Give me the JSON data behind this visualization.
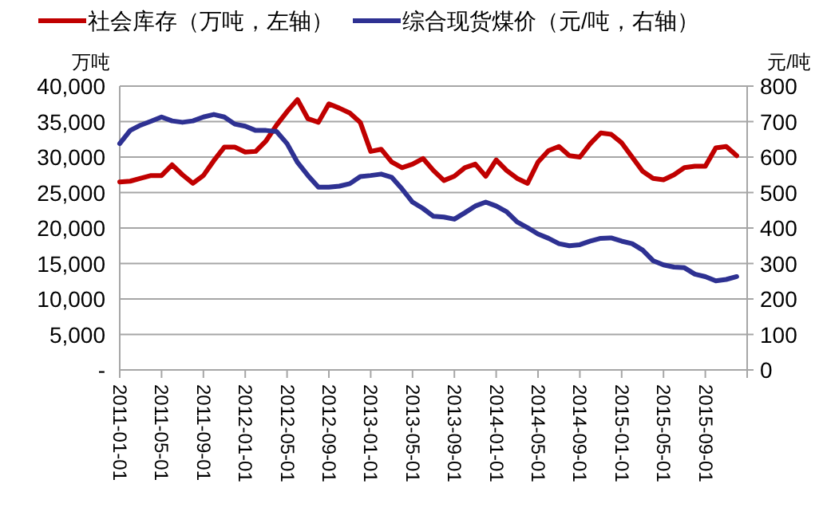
{
  "chart_data": {
    "type": "line",
    "legend": "top",
    "grid": "y",
    "ylabel": "万吨",
    "y2label": "元/吨",
    "x": [
      "2011-01",
      "2011-02",
      "2011-03",
      "2011-04",
      "2011-05",
      "2011-06",
      "2011-07",
      "2011-08",
      "2011-09",
      "2011-10",
      "2011-11",
      "2011-12",
      "2012-01",
      "2012-02",
      "2012-03",
      "2012-04",
      "2012-05",
      "2012-06",
      "2012-07",
      "2012-08",
      "2012-09",
      "2012-10",
      "2012-11",
      "2012-12",
      "2013-01",
      "2013-02",
      "2013-03",
      "2013-04",
      "2013-05",
      "2013-06",
      "2013-07",
      "2013-08",
      "2013-09",
      "2013-10",
      "2013-11",
      "2013-12",
      "2014-01",
      "2014-02",
      "2014-03",
      "2014-04",
      "2014-05",
      "2014-06",
      "2014-07",
      "2014-08",
      "2014-09",
      "2014-10",
      "2014-11",
      "2014-12",
      "2015-01",
      "2015-02",
      "2015-03",
      "2015-04",
      "2015-05",
      "2015-06",
      "2015-07",
      "2015-08",
      "2015-09",
      "2015-10",
      "2015-11",
      "2015-12"
    ],
    "xlim": [
      "2011-01",
      "2016-01"
    ],
    "xticks": [
      {
        "value": "2011-01",
        "label": "2011-01-01"
      },
      {
        "value": "2011-05",
        "label": "2011-05-01"
      },
      {
        "value": "2011-09",
        "label": "2011-09-01"
      },
      {
        "value": "2012-01",
        "label": "2012-01-01"
      },
      {
        "value": "2012-05",
        "label": "2012-05-01"
      },
      {
        "value": "2012-09",
        "label": "2012-09-01"
      },
      {
        "value": "2013-01",
        "label": "2013-01-01"
      },
      {
        "value": "2013-05",
        "label": "2013-05-01"
      },
      {
        "value": "2013-09",
        "label": "2013-09-01"
      },
      {
        "value": "2014-01",
        "label": "2014-01-01"
      },
      {
        "value": "2014-05",
        "label": "2014-05-01"
      },
      {
        "value": "2014-09",
        "label": "2014-09-01"
      },
      {
        "value": "2015-01",
        "label": "2015-01-01"
      },
      {
        "value": "2015-05",
        "label": "2015-05-01"
      },
      {
        "value": "2015-09",
        "label": "2015-09-01"
      },
      {
        "value": "2016-01",
        "label": null
      }
    ],
    "ylim": [
      0,
      40000
    ],
    "yticks": [
      {
        "value": 0,
        "label": "-"
      },
      {
        "value": 5000,
        "label": "5,000"
      },
      {
        "value": 10000,
        "label": "10,000"
      },
      {
        "value": 15000,
        "label": "15,000"
      },
      {
        "value": 20000,
        "label": "20,000"
      },
      {
        "value": 25000,
        "label": "25,000"
      },
      {
        "value": 30000,
        "label": "30,000"
      },
      {
        "value": 35000,
        "label": "35,000"
      },
      {
        "value": 40000,
        "label": "40,000"
      }
    ],
    "y2lim": [
      0,
      800
    ],
    "y2ticks": [
      0,
      100,
      200,
      300,
      400,
      500,
      600,
      700,
      800
    ],
    "series": [
      {
        "name": "社会库存（万吨，左轴）",
        "color": "#c00000",
        "values": [
          26500,
          26600,
          27000,
          27400,
          27400,
          28900,
          27500,
          26300,
          27400,
          29500,
          31400,
          31400,
          30700,
          30800,
          32300,
          34500,
          36400,
          38100,
          35400,
          34900,
          37500,
          36900,
          36200,
          34900,
          30800,
          31100,
          29300,
          28500,
          29000,
          29800,
          28100,
          26700,
          27300,
          28500,
          29000,
          27300,
          29600,
          28100,
          27000,
          26300,
          29300,
          30900,
          31500,
          30200,
          30000,
          31900,
          33400,
          33200,
          32000,
          30000,
          28000,
          27000,
          26800,
          27500,
          28500,
          28700,
          28700,
          31300,
          31500,
          30200
        ]
      },
      {
        "name": "综合现货煤价（元/吨，右轴）",
        "color": "#2e3192",
        "axis": "y2",
        "values": [
          638,
          675,
          690,
          701,
          713,
          702,
          698,
          702,
          713,
          720,
          713,
          693,
          687,
          675,
          675,
          672,
          638,
          585,
          548,
          515,
          515,
          518,
          525,
          545,
          548,
          552,
          543,
          510,
          473,
          455,
          433,
          431,
          425,
          443,
          462,
          473,
          462,
          446,
          417,
          401,
          383,
          371,
          356,
          350,
          353,
          363,
          371,
          372,
          363,
          356,
          338,
          308,
          296,
          290,
          288,
          270,
          263,
          251,
          255,
          263
        ]
      }
    ]
  }
}
